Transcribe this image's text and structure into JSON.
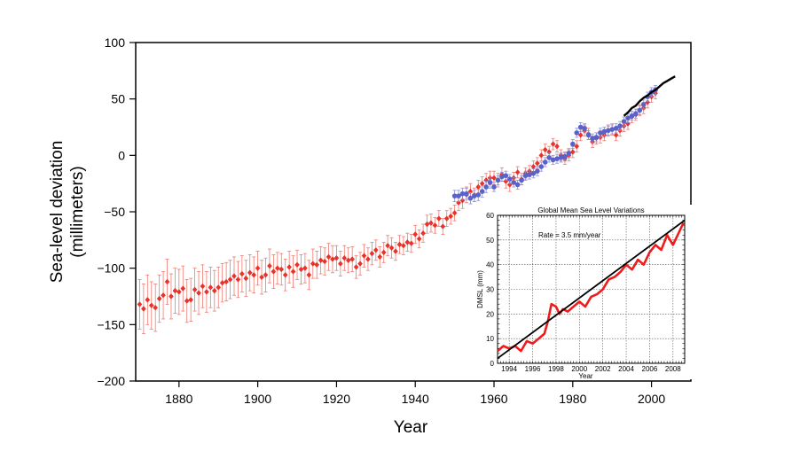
{
  "chart_data": [
    {
      "type": "scatter",
      "xlabel": "Year",
      "ylabel_line1": "Sea-level deviation",
      "ylabel_line2": "(millimeters)",
      "xlim": [
        1869,
        2010
      ],
      "ylim": [
        -200,
        100
      ],
      "x_ticks": [
        1880,
        1900,
        1920,
        1940,
        1960,
        1980,
        2000
      ],
      "y_ticks": [
        100,
        50,
        0,
        -50,
        -100,
        -150,
        -200
      ],
      "grid": false,
      "colors": {
        "tide_gauge_red": "#e8322a",
        "error_bar": "#f07a70",
        "reconstruction_blue": "#5a62c8",
        "altimetry_black": "#000000"
      },
      "series": [
        {
          "style": "red-diamonds-with-error-bars",
          "x": [
            1870,
            1871,
            1872,
            1873,
            1874,
            1875,
            1876,
            1877,
            1878,
            1879,
            1880,
            1881,
            1882,
            1883,
            1884,
            1885,
            1886,
            1887,
            1888,
            1889,
            1890,
            1891,
            1892,
            1893,
            1894,
            1895,
            1896,
            1897,
            1898,
            1899,
            1900,
            1901,
            1902,
            1903,
            1904,
            1905,
            1906,
            1907,
            1908,
            1909,
            1910,
            1911,
            1912,
            1913,
            1914,
            1915,
            1916,
            1917,
            1918,
            1919,
            1920,
            1921,
            1922,
            1923,
            1924,
            1925,
            1926,
            1927,
            1928,
            1929,
            1930,
            1931,
            1932,
            1933,
            1934,
            1935,
            1936,
            1937,
            1938,
            1939,
            1940,
            1941,
            1942,
            1943,
            1944,
            1945,
            1946,
            1947,
            1948,
            1949,
            1950,
            1951,
            1952,
            1953,
            1954,
            1955,
            1956,
            1957,
            1958,
            1959,
            1960,
            1961,
            1962,
            1963,
            1964,
            1965,
            1966,
            1967,
            1968,
            1969,
            1970,
            1971,
            1972,
            1973,
            1974,
            1975,
            1976,
            1977,
            1978,
            1979,
            1980,
            1981,
            1982,
            1983,
            1984,
            1985,
            1986,
            1987,
            1988,
            1989,
            1990,
            1991,
            1992,
            1993,
            1994,
            1995,
            1996,
            1997,
            1998,
            1999,
            2000,
            2001
          ],
          "y": [
            -132,
            -136,
            -128,
            -133,
            -135,
            -127,
            -124,
            -112,
            -125,
            -120,
            -121,
            -118,
            -129,
            -128,
            -119,
            -122,
            -116,
            -121,
            -117,
            -120,
            -117,
            -113,
            -112,
            -110,
            -107,
            -110,
            -105,
            -109,
            -104,
            -106,
            -100,
            -108,
            -106,
            -98,
            -103,
            -100,
            -101,
            -106,
            -99,
            -103,
            -97,
            -101,
            -100,
            -106,
            -96,
            -97,
            -93,
            -94,
            -90,
            -92,
            -91,
            -96,
            -91,
            -93,
            -92,
            -99,
            -96,
            -89,
            -92,
            -87,
            -84,
            -90,
            -86,
            -80,
            -82,
            -85,
            -79,
            -80,
            -77,
            -78,
            -70,
            -74,
            -69,
            -61,
            -60,
            -62,
            -56,
            -63,
            -56,
            -54,
            -51,
            -42,
            -40,
            -35,
            -32,
            -35,
            -28,
            -25,
            -22,
            -20,
            -20,
            -22,
            -17,
            -23,
            -26,
            -20,
            -15,
            -21,
            -16,
            -14,
            -10,
            -7,
            0,
            5,
            3,
            10,
            8,
            0,
            -3,
            0,
            3,
            8,
            18,
            22,
            19,
            12,
            15,
            16,
            18,
            22,
            23,
            18,
            22,
            26,
            28,
            34,
            36,
            40,
            42,
            47,
            52,
            55
          ],
          "err": [
            22,
            22,
            22,
            21,
            21,
            21,
            21,
            20,
            20,
            20,
            20,
            20,
            19,
            19,
            19,
            19,
            19,
            18,
            18,
            18,
            18,
            17,
            17,
            17,
            17,
            16,
            16,
            16,
            16,
            16,
            15,
            15,
            15,
            15,
            15,
            14,
            14,
            14,
            14,
            14,
            13,
            13,
            13,
            13,
            13,
            12,
            12,
            12,
            12,
            12,
            11,
            11,
            11,
            11,
            11,
            10,
            10,
            10,
            10,
            10,
            9,
            9,
            9,
            9,
            9,
            8,
            8,
            8,
            8,
            8,
            8,
            8,
            8,
            8,
            8,
            7,
            7,
            7,
            7,
            7,
            7,
            7,
            7,
            7,
            7,
            6,
            6,
            6,
            6,
            6,
            6,
            6,
            6,
            6,
            6,
            5,
            5,
            5,
            5,
            5,
            5,
            5,
            5,
            5,
            5,
            5,
            5,
            5,
            5,
            5,
            5,
            5,
            5,
            5,
            5,
            5,
            5,
            5,
            5,
            5,
            5,
            5,
            5,
            5,
            5,
            5,
            5,
            5,
            5,
            5,
            5,
            5
          ]
        },
        {
          "style": "blue-dots-with-error-bars",
          "x": [
            1950,
            1951,
            1952,
            1953,
            1954,
            1955,
            1956,
            1957,
            1958,
            1959,
            1960,
            1961,
            1962,
            1963,
            1964,
            1965,
            1966,
            1967,
            1968,
            1969,
            1970,
            1971,
            1972,
            1973,
            1974,
            1975,
            1976,
            1977,
            1978,
            1979,
            1980,
            1981,
            1982,
            1983,
            1984,
            1985,
            1986,
            1987,
            1988,
            1989,
            1990,
            1991,
            1992,
            1993,
            1994,
            1995,
            1996,
            1997,
            1998,
            1999,
            2000,
            2001
          ],
          "y": [
            -36,
            -36,
            -34,
            -34,
            -38,
            -36,
            -35,
            -32,
            -28,
            -24,
            -28,
            -22,
            -19,
            -18,
            -21,
            -24,
            -26,
            -22,
            -18,
            -17,
            -16,
            -14,
            -10,
            -6,
            -2,
            -4,
            -3,
            -2,
            -1,
            2,
            10,
            20,
            25,
            24,
            18,
            15,
            16,
            20,
            21,
            22,
            23,
            24,
            26,
            30,
            33,
            35,
            37,
            40,
            45,
            52,
            56,
            58
          ],
          "err": [
            5,
            5,
            5,
            5,
            5,
            5,
            5,
            5,
            5,
            5,
            4,
            4,
            4,
            4,
            4,
            4,
            4,
            4,
            4,
            4,
            4,
            4,
            4,
            4,
            4,
            4,
            4,
            4,
            4,
            4,
            4,
            4,
            4,
            4,
            4,
            4,
            4,
            4,
            4,
            4,
            4,
            4,
            4,
            4,
            4,
            4,
            4,
            4,
            4,
            4,
            4,
            4
          ]
        },
        {
          "style": "black-line",
          "x": [
            1993,
            1994,
            1995,
            1996,
            1997,
            1998,
            1999,
            2000,
            2001,
            2002,
            2003,
            2004,
            2005,
            2006
          ],
          "y": [
            35,
            38,
            42,
            44,
            48,
            51,
            53,
            56,
            58,
            61,
            64,
            66,
            68,
            70
          ]
        }
      ]
    },
    {
      "type": "line",
      "title": "Global Mean Sea Level Variations",
      "ylabel": "DMSL (mm)",
      "xlabel": "Year",
      "annotation": "Rate = 3.5 mm/year",
      "xlim": [
        1993,
        2009
      ],
      "ylim": [
        0,
        60
      ],
      "x_ticks": [
        "1994",
        "1996",
        "1998",
        "2000",
        "2002",
        "2004",
        "2006",
        "2008"
      ],
      "y_ticks": [
        "0",
        "10",
        "20",
        "30",
        "40",
        "50",
        "60"
      ],
      "grid": true,
      "series": [
        {
          "style": "red-line",
          "x": [
            1993.0,
            1993.5,
            1994.0,
            1994.5,
            1995.0,
            1995.5,
            1996.0,
            1996.5,
            1997.0,
            1997.3,
            1997.6,
            1998.0,
            1998.3,
            1998.6,
            1999.0,
            1999.5,
            2000.0,
            2000.5,
            2001.0,
            2001.5,
            2002.0,
            2002.5,
            2003.0,
            2003.5,
            2004.0,
            2004.5,
            2005.0,
            2005.5,
            2006.0,
            2006.5,
            2007.0,
            2007.5,
            2008.0,
            2008.5,
            2008.9
          ],
          "y": [
            5,
            7,
            6,
            7,
            5,
            9,
            8,
            10,
            12,
            17,
            24,
            23,
            20,
            22,
            21,
            23,
            25,
            23,
            27,
            28,
            30,
            34,
            35,
            37,
            40,
            38,
            42,
            40,
            45,
            48,
            46,
            52,
            48,
            53,
            57
          ]
        },
        {
          "style": "black-trend",
          "x": [
            1993,
            2009
          ],
          "y": [
            2,
            58
          ]
        }
      ]
    }
  ]
}
